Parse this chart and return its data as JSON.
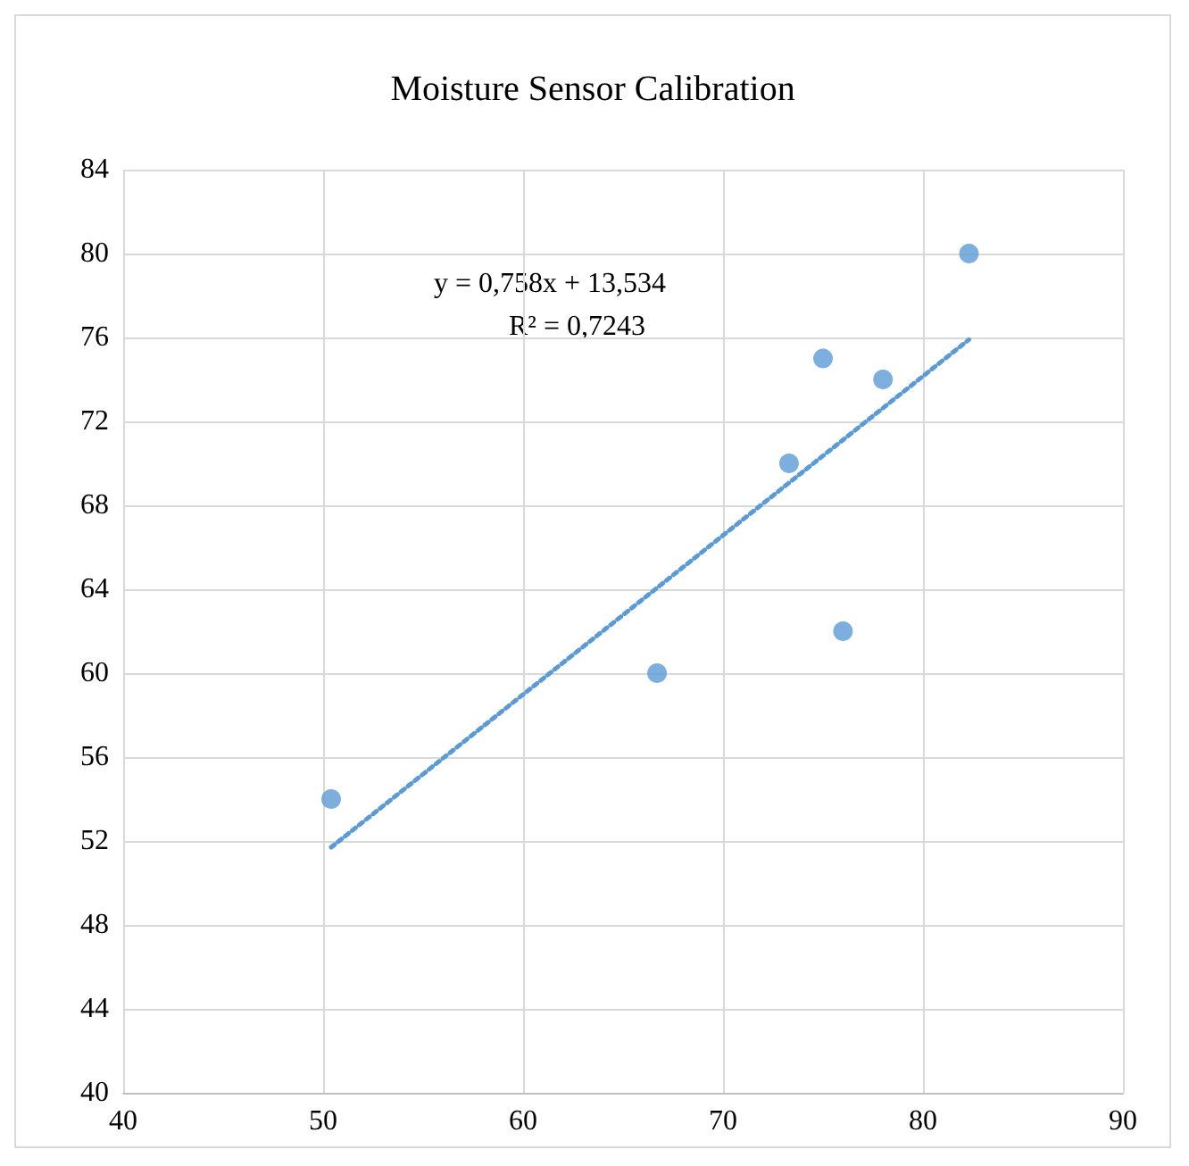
{
  "chart_data": {
    "type": "scatter",
    "title": "Moisture Sensor Calibration",
    "annotations": [
      "y = 0,758x + 13,534",
      "R² = 0,7243"
    ],
    "series": [
      {
        "color": "#5b9bd5",
        "x": [
          50.4,
          66.7,
          73.3,
          75.0,
          76.0,
          78.0,
          82.3
        ],
        "values": [
          54,
          60,
          70,
          75,
          62,
          74,
          80
        ],
        "marker": "circle"
      },
      {
        "type": "line",
        "color": "#5b9bd5",
        "x": [
          50.4,
          82.3
        ],
        "values": [
          51.7,
          75.9
        ],
        "line_style": "dotted",
        "marker": "none"
      }
    ],
    "xlim": [
      40,
      90
    ],
    "xticks": [
      40,
      50,
      60,
      70,
      80,
      90
    ],
    "ylim": [
      40,
      84
    ],
    "yticks": [
      40,
      44,
      48,
      52,
      56,
      60,
      64,
      68,
      72,
      76,
      80,
      84
    ],
    "grid": true
  }
}
